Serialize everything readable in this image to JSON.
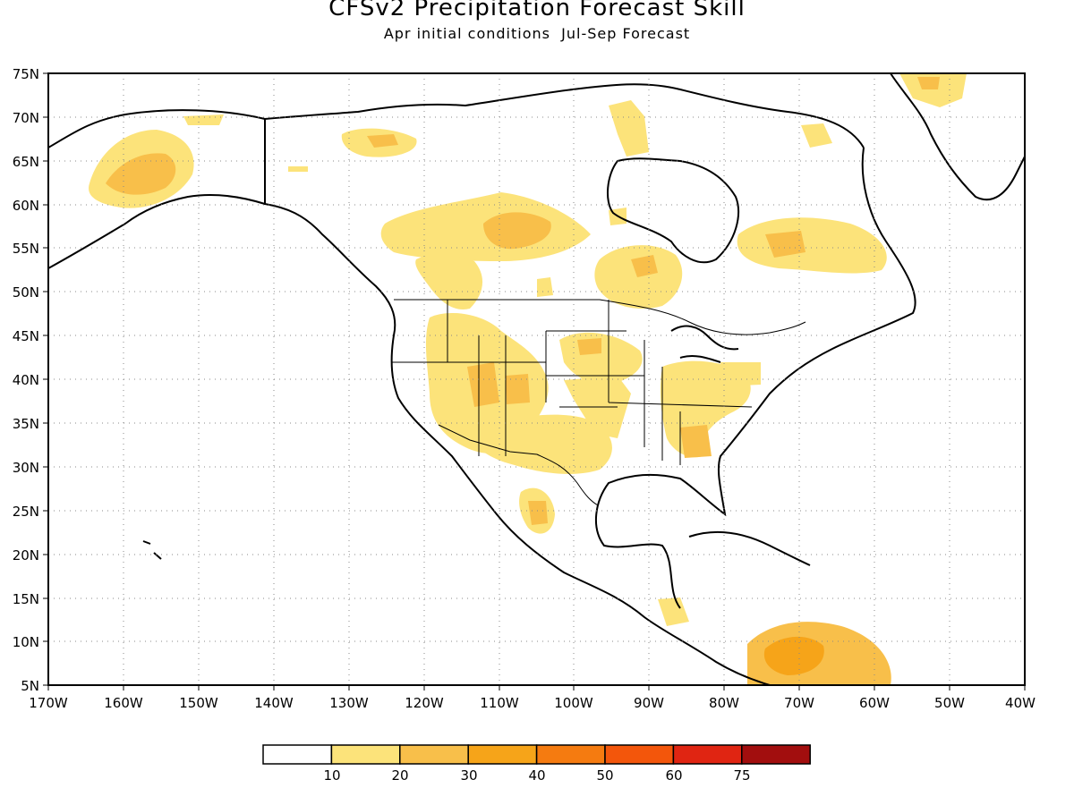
{
  "title": "CFSv2 Precipitation Forecast Skill",
  "subtitle": "Apr initial conditions  Jul-Sep Forecast",
  "map": {
    "type": "filled-contour map",
    "region": "North America",
    "lon_range": [
      -170,
      -40
    ],
    "lat_range": [
      5,
      75
    ],
    "grid": "dotted",
    "lat_labels": [
      "75N",
      "70N",
      "65N",
      "60N",
      "55N",
      "50N",
      "45N",
      "40N",
      "35N",
      "30N",
      "25N",
      "20N",
      "15N",
      "10N",
      "5N"
    ],
    "lon_labels": [
      "170W",
      "160W",
      "150W",
      "140W",
      "130W",
      "120W",
      "110W",
      "100W",
      "90W",
      "80W",
      "70W",
      "60W",
      "50W",
      "40W"
    ]
  },
  "colorbar": {
    "bins": [
      {
        "color": "#ffffff"
      },
      {
        "color": "#fce37a"
      },
      {
        "color": "#f8bf4a"
      },
      {
        "color": "#f6a419"
      },
      {
        "color": "#f57b10"
      },
      {
        "color": "#f3560b"
      },
      {
        "color": "#e02512"
      },
      {
        "color": "#a20e0e"
      }
    ],
    "labels": [
      "10",
      "20",
      "30",
      "40",
      "50",
      "60",
      "75"
    ]
  },
  "colors": {
    "skill_10_20": "#fce37a",
    "skill_20_30": "#f8bf4a",
    "skill_30_40": "#f6a419",
    "skill_40_50": "#f57b10"
  }
}
